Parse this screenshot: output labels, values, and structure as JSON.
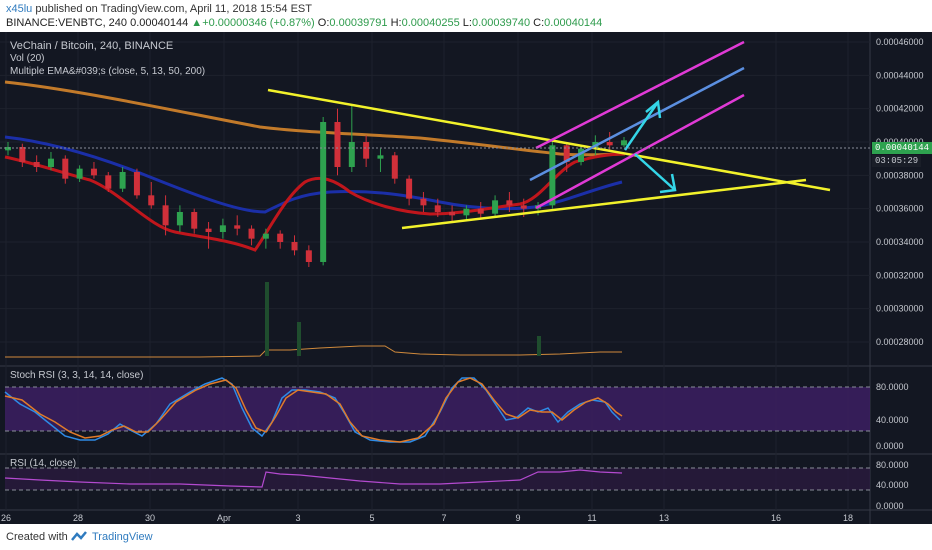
{
  "header": {
    "user": "x45lu",
    "published": "published on TradingView.com, April 11, 2018 15:54 EST",
    "symbol_line": "BINANCE:VENBTC, 240",
    "last": "0.00040144",
    "change_arrow": "▲",
    "change": "+0.00000346 (+0.87%)",
    "o_label": "O:",
    "o_val": "0.00039791",
    "h_label": "H:",
    "h_val": "0.00040255",
    "l_label": "L:",
    "l_val": "0.00039740",
    "c_label": "C:",
    "c_val": "0.00040144"
  },
  "legends": {
    "main_title": "VeChain / Bitcoin, 240, BINANCE",
    "vol": "Vol (20)",
    "ema": "Multiple EMA&#039;s (close, 5, 13, 50, 200)",
    "stoch": "Stoch RSI (3, 3, 14, 14, close)",
    "rsi": "RSI (14, close)"
  },
  "price_tag": {
    "value": "0.00040144",
    "countdown": "03:05:29"
  },
  "footer": {
    "created": "Created with",
    "brand": "TradingView"
  },
  "chart_data": {
    "type": "candlestick",
    "y_ticks": [
      "0.00046000",
      "0.00044000",
      "0.00042000",
      "0.00040000",
      "0.00038000",
      "0.00036000",
      "0.00034000",
      "0.00032000",
      "0.00030000",
      "0.00028000"
    ],
    "x_ticks": [
      "26",
      "28",
      "30",
      "Apr",
      "3",
      "5",
      "7",
      "9",
      "11",
      "13",
      "16",
      "18"
    ],
    "ylim": [
      0.00027,
      0.00047
    ],
    "stoch_ticks": [
      "80.0000",
      "40.0000",
      "0.0000"
    ],
    "rsi_ticks": [
      "80.0000",
      "40.0000",
      "0.0000"
    ],
    "candles_approx": [
      [
        0.000395,
        0.0004,
        0.000392,
        0.000397
      ],
      [
        0.000397,
        0.000399,
        0.000385,
        0.000388
      ],
      [
        0.000388,
        0.000392,
        0.000382,
        0.000385
      ],
      [
        0.000385,
        0.000394,
        0.000383,
        0.00039
      ],
      [
        0.00039,
        0.000392,
        0.000375,
        0.000378
      ],
      [
        0.000378,
        0.000386,
        0.000376,
        0.000384
      ],
      [
        0.000384,
        0.000388,
        0.000378,
        0.00038
      ],
      [
        0.00038,
        0.000382,
        0.00037,
        0.000372
      ],
      [
        0.000372,
        0.000385,
        0.00037,
        0.000382
      ],
      [
        0.000382,
        0.000384,
        0.000366,
        0.000368
      ],
      [
        0.000368,
        0.000376,
        0.00036,
        0.000362
      ],
      [
        0.000362,
        0.000368,
        0.000344,
        0.00035
      ],
      [
        0.00035,
        0.000362,
        0.000346,
        0.000358
      ],
      [
        0.000358,
        0.00036,
        0.000345,
        0.000348
      ],
      [
        0.000348,
        0.000352,
        0.000336,
        0.000346
      ],
      [
        0.000346,
        0.000354,
        0.000342,
        0.00035
      ],
      [
        0.00035,
        0.000356,
        0.000344,
        0.000348
      ],
      [
        0.000348,
        0.00035,
        0.000338,
        0.000342
      ],
      [
        0.000342,
        0.000348,
        0.000336,
        0.000345
      ],
      [
        0.000345,
        0.000347,
        0.000336,
        0.00034
      ],
      [
        0.00034,
        0.000344,
        0.000332,
        0.000335
      ],
      [
        0.000335,
        0.000338,
        0.000325,
        0.000328
      ],
      [
        0.000328,
        0.000415,
        0.000326,
        0.000412
      ],
      [
        0.000412,
        0.00042,
        0.00038,
        0.000385
      ],
      [
        0.000385,
        0.000422,
        0.000382,
        0.0004
      ],
      [
        0.0004,
        0.000404,
        0.000385,
        0.00039
      ],
      [
        0.00039,
        0.000396,
        0.000382,
        0.000392
      ],
      [
        0.000392,
        0.000394,
        0.000375,
        0.000378
      ],
      [
        0.000378,
        0.00038,
        0.000362,
        0.000366
      ],
      [
        0.000366,
        0.00037,
        0.000358,
        0.000362
      ],
      [
        0.000362,
        0.000366,
        0.000355,
        0.000358
      ],
      [
        0.000358,
        0.000362,
        0.000352,
        0.000356
      ],
      [
        0.000356,
        0.000362,
        0.000353,
        0.00036
      ],
      [
        0.00036,
        0.000364,
        0.000354,
        0.000357
      ],
      [
        0.000357,
        0.000368,
        0.000355,
        0.000365
      ],
      [
        0.000365,
        0.00037,
        0.000358,
        0.000362
      ],
      [
        0.000362,
        0.000366,
        0.000355,
        0.00036
      ],
      [
        0.00036,
        0.000364,
        0.000356,
        0.000362
      ],
      [
        0.000362,
        0.000402,
        0.00036,
        0.000398
      ],
      [
        0.000398,
        0.0004,
        0.000382,
        0.000388
      ],
      [
        0.000388,
        0.000398,
        0.000386,
        0.000396
      ],
      [
        0.000396,
        0.000404,
        0.000392,
        0.0004
      ],
      [
        0.0004,
        0.000406,
        0.000395,
        0.000398
      ],
      [
        0.000398,
        0.000403,
        0.000397,
        0.000401
      ]
    ]
  }
}
